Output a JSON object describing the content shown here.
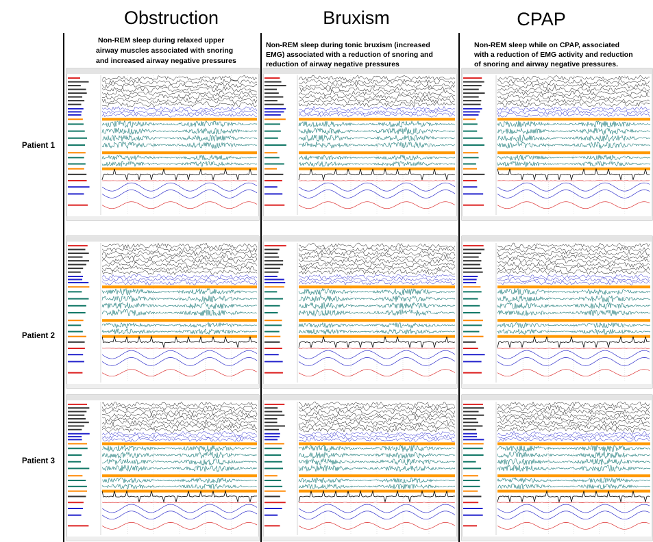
{
  "columns": [
    {
      "title": "Obstruction",
      "description": [
        "Non-REM sleep during relaxed upper",
        "airway muscles associated with snoring",
        "and increased airway negative pressures"
      ]
    },
    {
      "title": "Bruxism",
      "description": [
        "Non-REM sleep during tonic bruxism (increased",
        "EMG) associated with a reduction of snoring and",
        "reduction of airway negative pressures"
      ]
    },
    {
      "title": "CPAP",
      "description": [
        "Non-REM sleep while on CPAP, associated",
        "with a reduction of EMG activity and reduction",
        "of snoring and airway negative pressures."
      ]
    }
  ],
  "rows": [
    {
      "label": "Patient 1"
    },
    {
      "label": "Patient 2"
    },
    {
      "label": "Patient 3"
    }
  ]
}
